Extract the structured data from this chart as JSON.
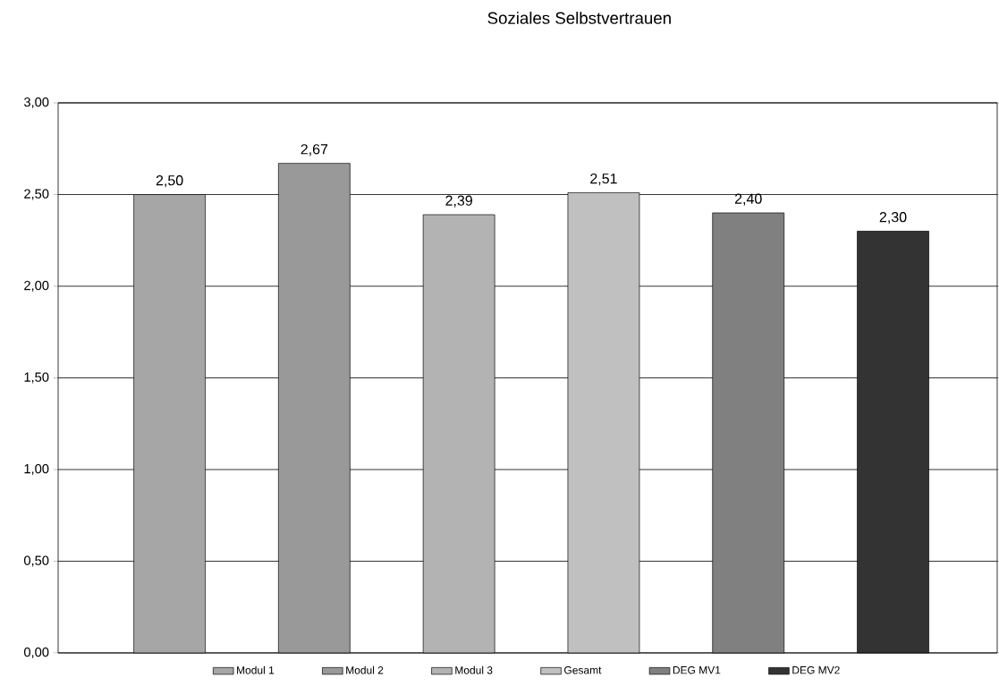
{
  "chart_data": {
    "type": "bar",
    "title": "Soziales Selbstvertrauen",
    "categories": [
      null,
      null,
      null,
      null,
      null,
      null
    ],
    "series": [
      {
        "name": "Modul 1",
        "color": "#a6a6a6",
        "values": [
          2.5,
          null,
          null,
          null,
          null,
          null
        ],
        "value_labels": [
          "2,50",
          null,
          null,
          null,
          null,
          null
        ]
      },
      {
        "name": "Modul 2",
        "color": "#999999",
        "values": [
          null,
          2.67,
          null,
          null,
          null,
          null
        ],
        "value_labels": [
          null,
          "2,67",
          null,
          null,
          null,
          null
        ]
      },
      {
        "name": "Modul 3",
        "color": "#b3b3b3",
        "values": [
          null,
          null,
          2.39,
          null,
          null,
          null
        ],
        "value_labels": [
          null,
          null,
          "2,39",
          null,
          null,
          null
        ]
      },
      {
        "name": "Gesamt",
        "color": "#c0c0c0",
        "values": [
          null,
          null,
          null,
          2.51,
          null,
          null
        ],
        "value_labels": [
          null,
          null,
          null,
          "2,51",
          null,
          null
        ]
      },
      {
        "name": "DEG MV1",
        "color": "#808080",
        "values": [
          null,
          null,
          null,
          null,
          2.4,
          null
        ],
        "value_labels": [
          null,
          null,
          null,
          null,
          "2,40",
          null
        ]
      },
      {
        "name": "DEG MV2",
        "color": "#333333",
        "values": [
          null,
          null,
          null,
          null,
          null,
          2.3
        ],
        "value_labels": [
          null,
          null,
          null,
          null,
          null,
          "2,30"
        ]
      }
    ],
    "ylim": [
      0,
      3
    ],
    "yticks": [
      {
        "value": 0,
        "label": "0,00"
      },
      {
        "value": 0.5,
        "label": "0,50"
      },
      {
        "value": 1,
        "label": "1,00"
      },
      {
        "value": 1.5,
        "label": "1,50"
      },
      {
        "value": 2,
        "label": "2,00"
      },
      {
        "value": 2.5,
        "label": "2,50"
      },
      {
        "value": 3,
        "label": "3,00"
      }
    ],
    "grid": "y",
    "legend": "bottom",
    "tick_labels": "y"
  }
}
